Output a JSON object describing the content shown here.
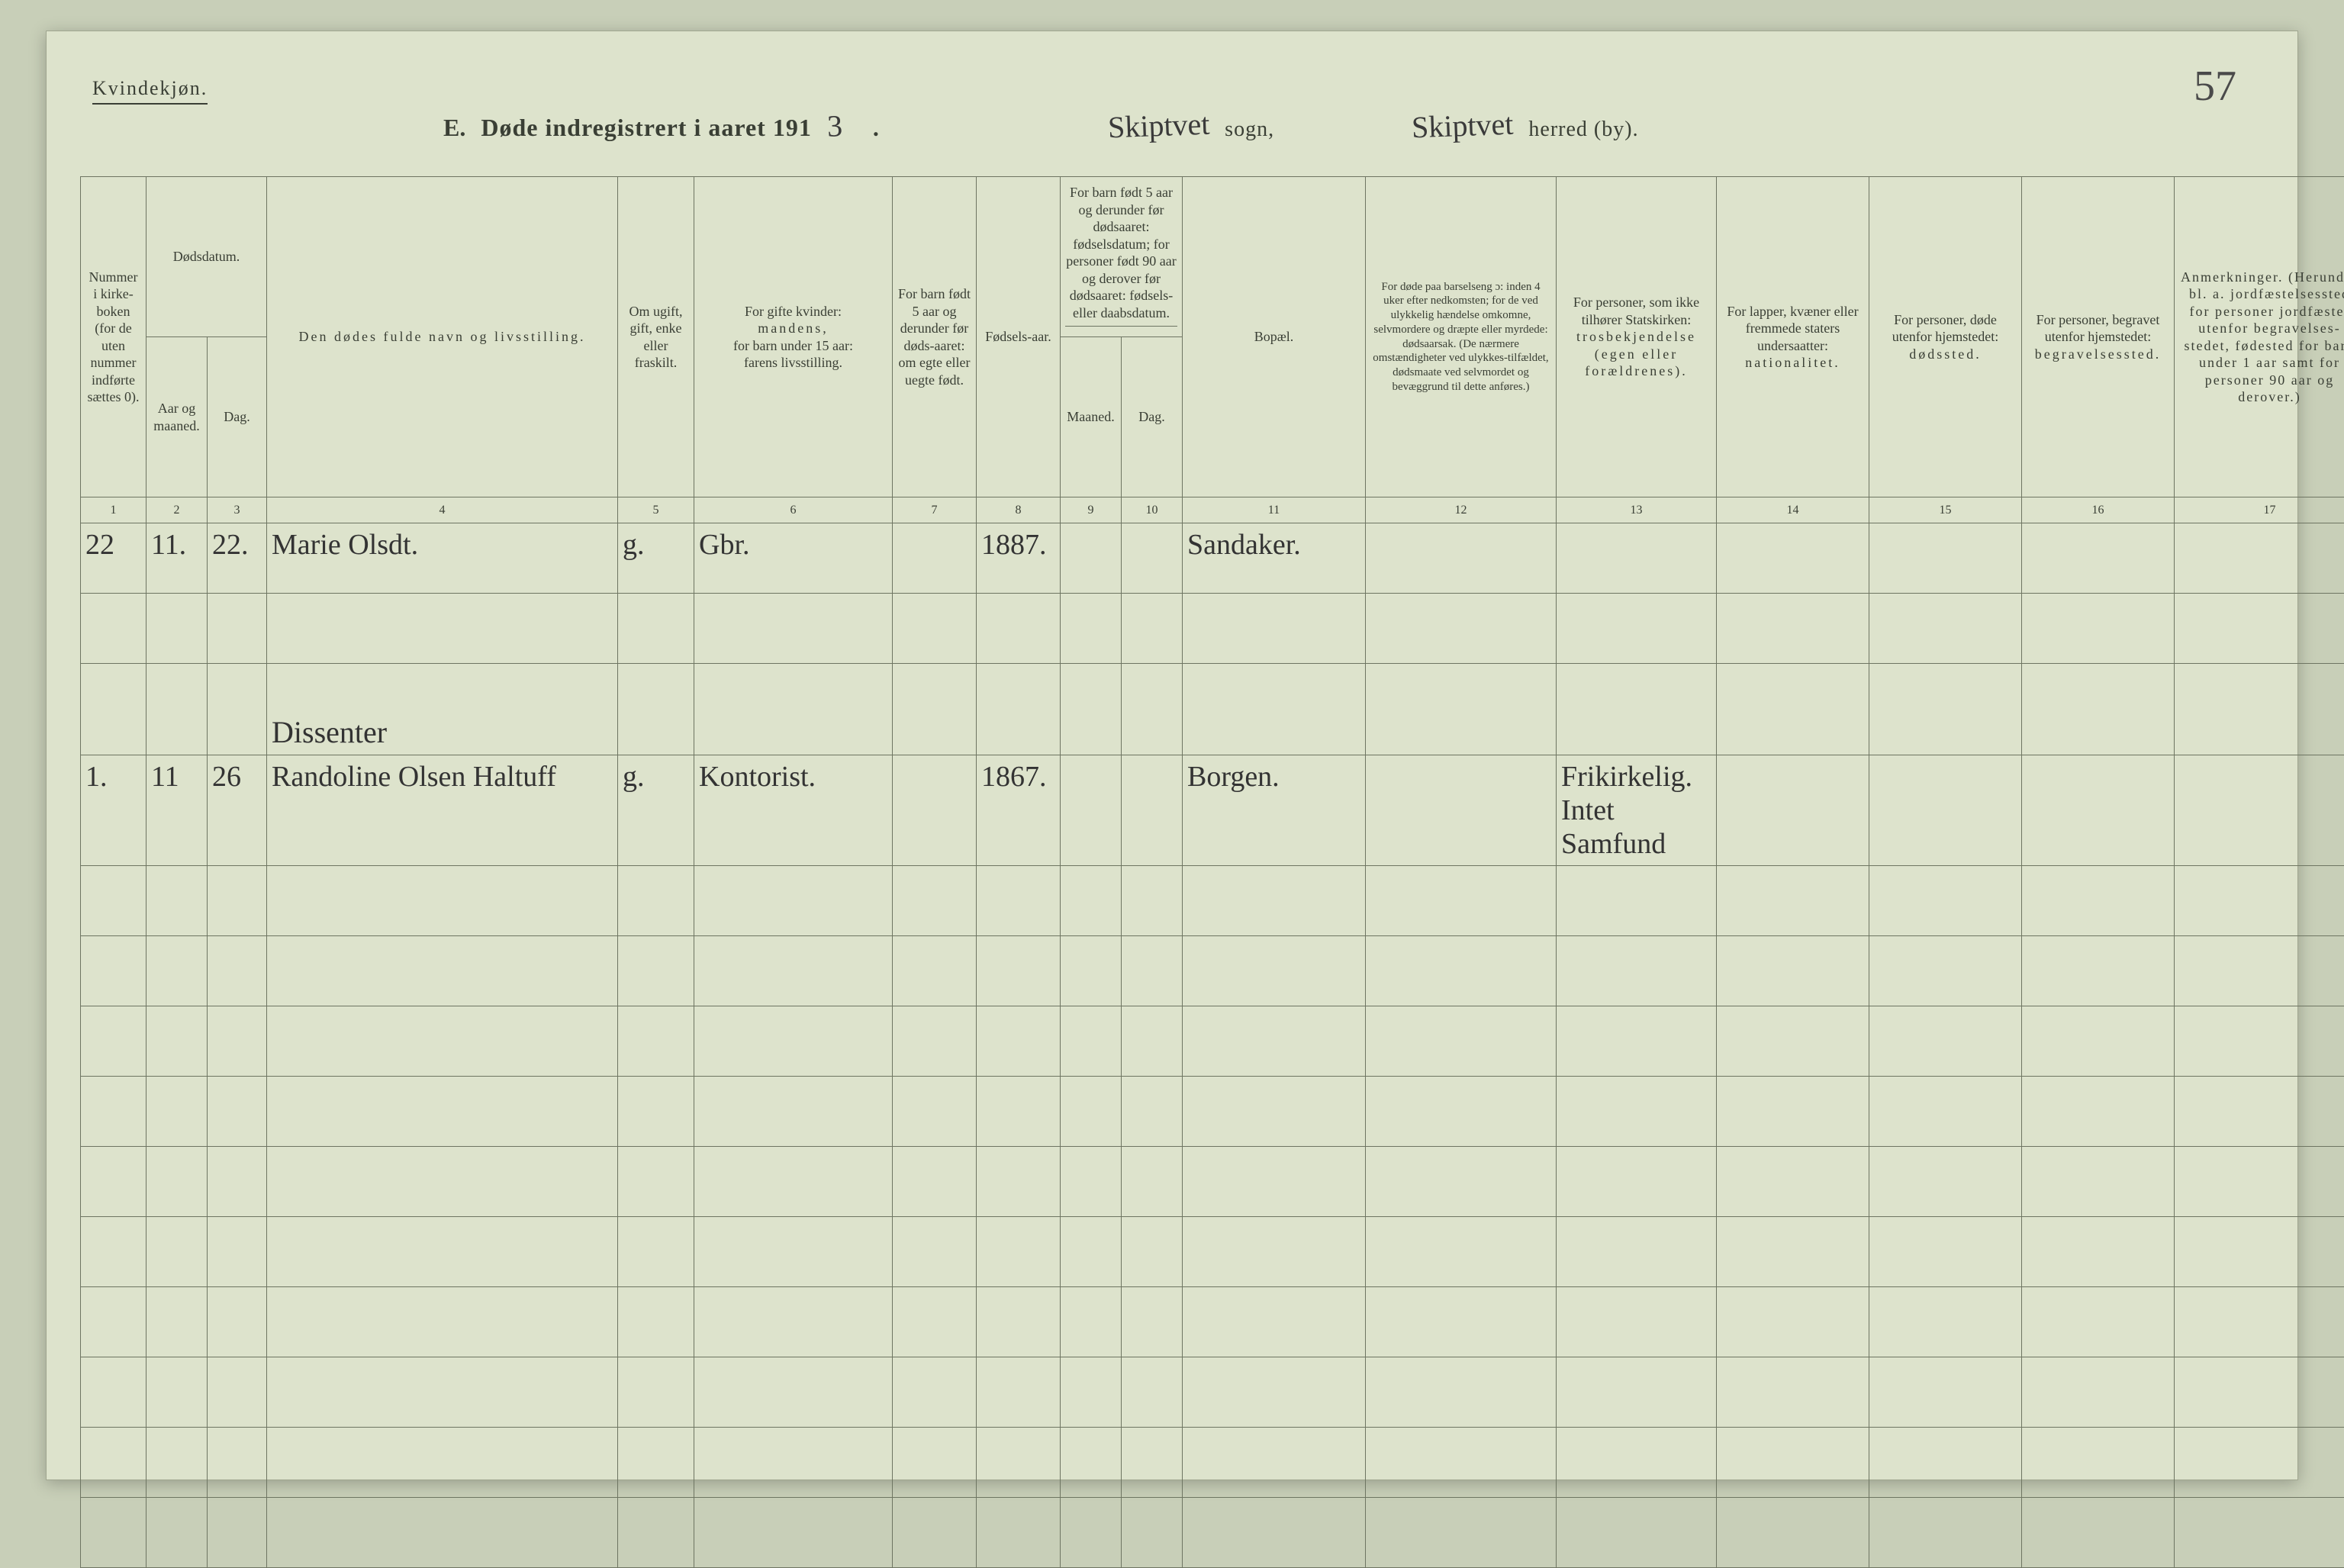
{
  "meta": {
    "page_number_handwritten": "57",
    "gender_heading": "Kvindekjøn.",
    "title_prefix": "E.",
    "title_printed_a": "Døde indregistrert i aaret 191",
    "year_suffix_handwritten": "3",
    "title_dot": ".",
    "sogn_handwritten": "Skiptvet",
    "label_sogn": "sogn,",
    "herred_handwritten": "Skiptvet",
    "label_herred": "herred (by).",
    "background_page": "#dde3cc",
    "background_outer": "#c8cfb8",
    "rule_color": "#6e7562"
  },
  "columns": {
    "c1": "Nummer i kirke-boken (for de uten nummer indførte sættes 0).",
    "c2a": "Dødsdatum.",
    "c2": "Aar og maaned.",
    "c3": "Dag.",
    "c4": "Den dødes fulde navn og livsstilling.",
    "c5": "Om ugift, gift, enke eller fraskilt.",
    "c6a": "For gifte kvinder:",
    "c6b": "mandens,",
    "c6c": "for barn under 15 aar:",
    "c6d": "farens livsstilling.",
    "c7": "For barn født 5 aar og derunder før døds-aaret: om egte eller uegte født.",
    "c8": "Fødsels-aar.",
    "c9_10a": "For barn født 5 aar og derunder før dødsaaret: fødselsdatum; for personer født 90 aar og derover før dødsaaret: fødsels- eller daabsdatum.",
    "c9": "Maaned.",
    "c10": "Dag.",
    "c11": "Bopæl.",
    "c12": "For døde paa barselseng ɔ: inden 4 uker efter nedkomsten; for de ved ulykkelig hændelse omkomne, selvmordere og dræpte eller myrdede: dødsaarsak. (De nærmere omstændigheter ved ulykkes-tilfældet, dødsmaate ved selvmordet og bevæggrund til dette anføres.)",
    "c13a": "For personer, som ikke tilhører Statskirken:",
    "c13b": "trosbekjendelse (egen eller forældrenes).",
    "c14a": "For lapper, kvæner eller fremmede staters undersaatter:",
    "c14b": "nationalitet.",
    "c15a": "For personer, døde utenfor hjemstedet:",
    "c15b": "dødssted.",
    "c16a": "For personer, begravet utenfor hjemstedet:",
    "c16b": "begravelsessted.",
    "c17": "Anmerkninger. (Herunder bl. a. jordfæstelsessted for personer jordfæstet utenfor begravelses-stedet, fødested for barn under 1 aar samt for personer 90 aar og derover.)"
  },
  "colnums": [
    "1",
    "2",
    "3",
    "4",
    "5",
    "6",
    "7",
    "8",
    "9",
    "10",
    "11",
    "12",
    "13",
    "14",
    "15",
    "16",
    "17"
  ],
  "rows": [
    {
      "c1": "22",
      "c2": "11.",
      "c3": "22.",
      "c4": "Marie Olsdt.",
      "c5": "g.",
      "c6": "Gbr.",
      "c7": "",
      "c8": "1887.",
      "c9": "",
      "c10": "",
      "c11": "Sandaker.",
      "c12": "",
      "c13": "",
      "c14": "",
      "c15": "",
      "c16": "",
      "c17": ""
    },
    {
      "blank": true
    },
    {
      "section_label": "Dissenter",
      "c1": "",
      "c2": "",
      "c3": "",
      "c4_label_only": true,
      "c4": "Dissenter",
      "c5": "",
      "c6": "",
      "c7": "",
      "c8": "",
      "c9": "",
      "c10": "",
      "c11": "",
      "c12": "",
      "c13": "",
      "c14": "",
      "c15": "",
      "c16": "",
      "c17": ""
    },
    {
      "c1": "1.",
      "c2": "11",
      "c3": "26",
      "c4": "Randoline Olsen Haltuff",
      "c5": "g.",
      "c6": "Kontorist.",
      "c7": "",
      "c8": "1867.",
      "c9": "",
      "c10": "",
      "c11": "Borgen.",
      "c12": "",
      "c13": "Frikirkelig. Intet Samfund",
      "c14": "",
      "c15": "",
      "c16": "",
      "c17": ""
    },
    {
      "blank": true
    },
    {
      "blank": true
    },
    {
      "blank": true
    },
    {
      "blank": true
    },
    {
      "blank": true
    },
    {
      "blank": true
    },
    {
      "blank": true
    },
    {
      "blank": true
    },
    {
      "blank": true
    },
    {
      "blank": true
    }
  ]
}
